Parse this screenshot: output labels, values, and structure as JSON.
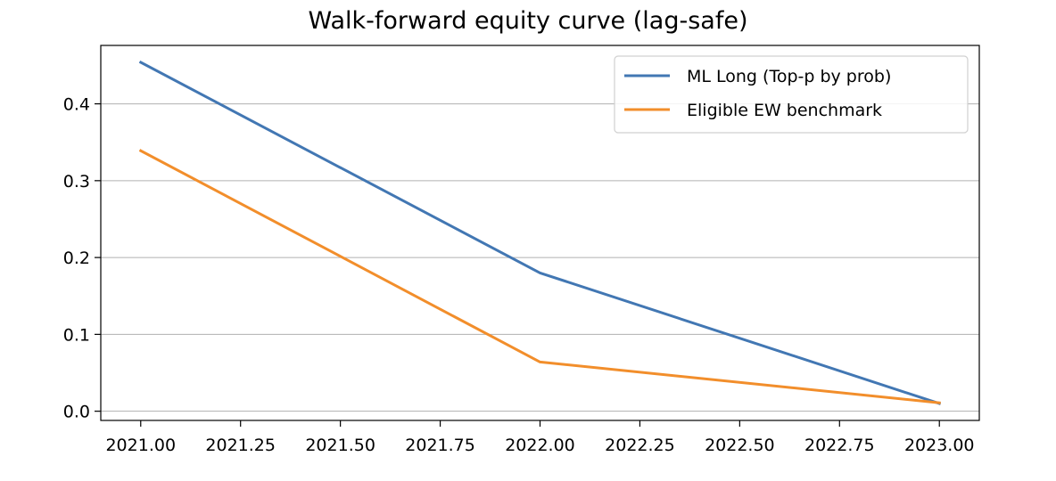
{
  "chart_data": {
    "type": "line",
    "title": "Walk-forward equity curve (lag-safe)",
    "xlabel": "",
    "ylabel": "",
    "x": [
      2021.0,
      2022.0,
      2023.0
    ],
    "xlim": [
      2020.9,
      2023.1
    ],
    "ylim": [
      -0.012,
      0.476
    ],
    "xticks": [
      2021.0,
      2021.25,
      2021.5,
      2021.75,
      2022.0,
      2022.25,
      2022.5,
      2022.75,
      2023.0
    ],
    "xtick_labels": [
      "2021.00",
      "2021.25",
      "2021.50",
      "2021.75",
      "2022.00",
      "2022.25",
      "2022.50",
      "2022.75",
      "2023.00"
    ],
    "yticks": [
      0.0,
      0.1,
      0.2,
      0.3,
      0.4
    ],
    "ytick_labels": [
      "0.0",
      "0.1",
      "0.2",
      "0.3",
      "0.4"
    ],
    "grid": "horizontal",
    "legend_position": "top-right",
    "series": [
      {
        "name": "ML Long (Top-p by prob)",
        "color": "#4277b3",
        "values": [
          0.454,
          0.18,
          0.01
        ]
      },
      {
        "name": "Eligible EW benchmark",
        "color": "#f28e2b",
        "values": [
          0.339,
          0.064,
          0.011
        ]
      }
    ]
  }
}
